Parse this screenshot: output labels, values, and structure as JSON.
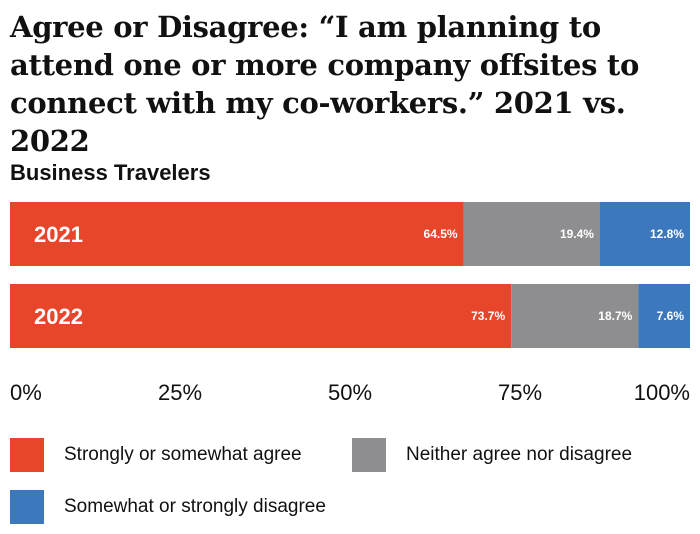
{
  "title": "Agree or Disagree: “I am planning to attend one or more company offsites to connect with my co-workers.” 2021 vs. 2022",
  "subtitle": "Business Travelers",
  "colors": {
    "agree": "#e8462b",
    "neutral": "#8e8e90",
    "disagree": "#3c78be"
  },
  "chart_data": {
    "type": "bar",
    "orientation": "horizontal",
    "stacked": true,
    "categories": [
      "2021",
      "2022"
    ],
    "series": [
      {
        "name": "Strongly or somewhat agree",
        "values": [
          64.5,
          73.7
        ],
        "labels": [
          "64.5%",
          "73.7%"
        ]
      },
      {
        "name": "Neither agree nor disagree",
        "values": [
          19.4,
          18.7
        ],
        "labels": [
          "19.4%",
          "18.7%"
        ]
      },
      {
        "name": "Somewhat or strongly disagree",
        "values": [
          12.8,
          7.6
        ],
        "labels": [
          "12.8%",
          "7.6%"
        ]
      }
    ],
    "xlim": [
      0,
      100
    ],
    "xticks": [
      "0%",
      "25%",
      "50%",
      "75%",
      "100%"
    ],
    "grid": false,
    "legend_position": "bottom"
  }
}
